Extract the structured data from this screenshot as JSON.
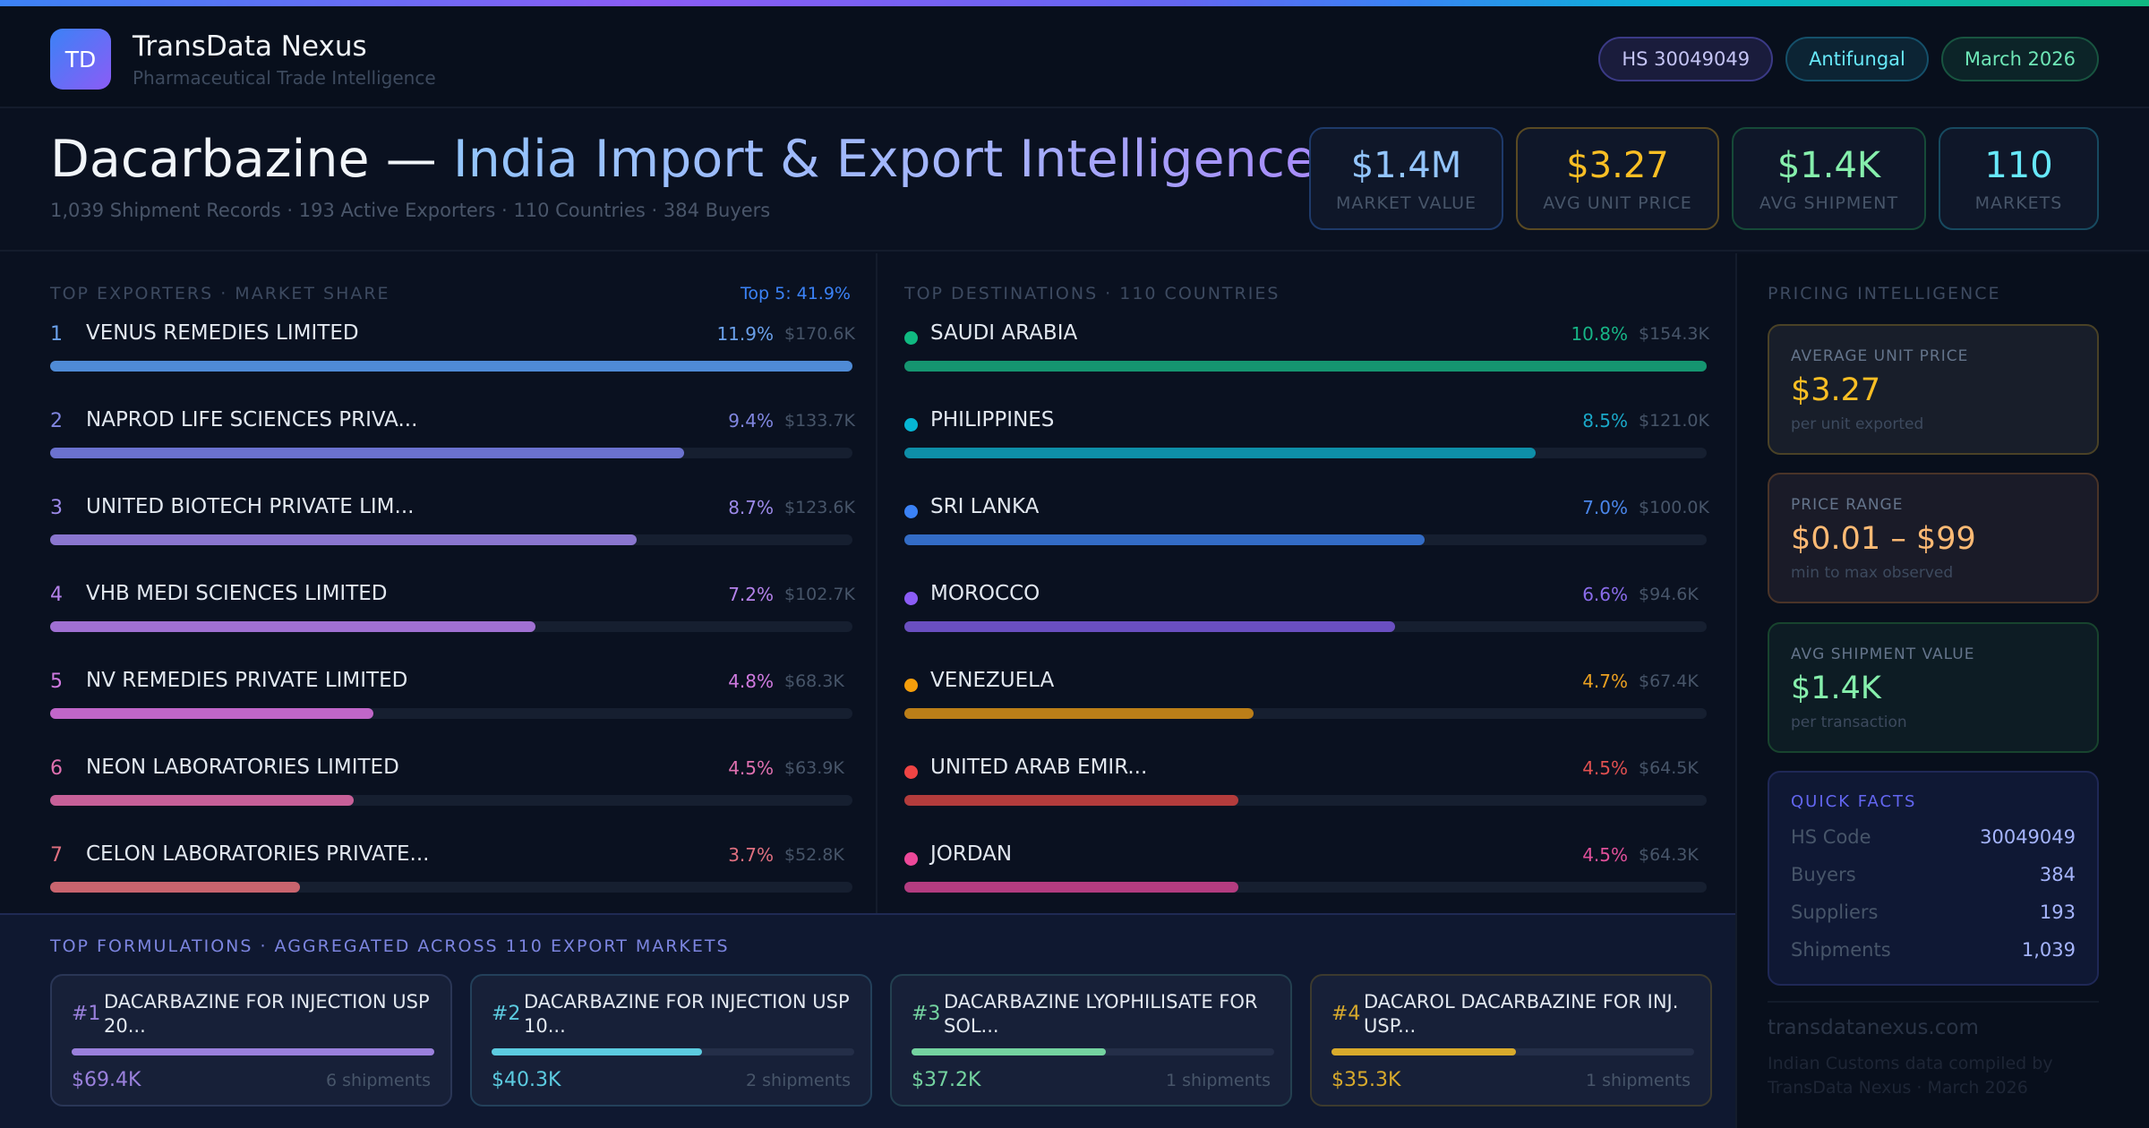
{
  "brand": {
    "logo_text": "TD",
    "name": "TransData Nexus",
    "tagline": "Pharmaceutical Trade Intelligence"
  },
  "pills": [
    "HS 30049049",
    "Antifungal",
    "March 2026"
  ],
  "hero": {
    "title_product": "Dacarbazine —",
    "title_rest": "India Import & Export Intelligence",
    "subtitle": "1,039 Shipment Records · 193 Active Exporters · 110 Countries · 384 Buyers"
  },
  "kpis": [
    {
      "value": "$1.4M",
      "label": "MARKET VALUE",
      "color": "#93c5fd"
    },
    {
      "value": "$3.27",
      "label": "AVG UNIT PRICE",
      "color": "#fbbf24"
    },
    {
      "value": "$1.4K",
      "label": "AVG SHIPMENT",
      "color": "#86efac"
    },
    {
      "value": "110",
      "label": "MARKETS",
      "color": "#67e8f9"
    }
  ],
  "exporters": {
    "label": "TOP EXPORTERS · MARKET SHARE",
    "summary": "Top 5: 41.9%",
    "items": [
      {
        "rank": "1",
        "name": "VENUS REMEDIES LIMITED",
        "pct": "11.9%",
        "value": "$170.6K",
        "share": 11.9,
        "color": "#4f8bd6",
        "text_color": "#6aa0ea"
      },
      {
        "rank": "2",
        "name": "NAPROD LIFE SCIENCES PRIVA...",
        "pct": "9.4%",
        "value": "$133.7K",
        "share": 9.4,
        "color": "#6b72cf",
        "text_color": "#8086e0"
      },
      {
        "rank": "3",
        "name": "UNITED BIOTECH PRIVATE LIM...",
        "pct": "8.7%",
        "value": "$123.6K",
        "share": 8.7,
        "color": "#8a76cf",
        "text_color": "#9d8aea"
      },
      {
        "rank": "4",
        "name": "VHB MEDI SCIENCES LIMITED",
        "pct": "7.2%",
        "value": "$102.7K",
        "share": 7.2,
        "color": "#a070d2",
        "text_color": "#b482ea"
      },
      {
        "rank": "5",
        "name": "NV REMEDIES PRIVATE LIMITED",
        "pct": "4.8%",
        "value": "$68.3K",
        "share": 4.8,
        "color": "#c066c8",
        "text_color": "#d07ae0"
      },
      {
        "rank": "6",
        "name": "NEON LABORATORIES LIMITED",
        "pct": "4.5%",
        "value": "$63.9K",
        "share": 4.5,
        "color": "#c76098",
        "text_color": "#e070b0"
      },
      {
        "rank": "7",
        "name": "CELON LABORATORIES PRIVATE...",
        "pct": "3.7%",
        "value": "$52.8K",
        "share": 3.7,
        "color": "#c9646e",
        "text_color": "#e07080"
      }
    ]
  },
  "destinations": {
    "label": "TOP DESTINATIONS · 110 COUNTRIES",
    "items": [
      {
        "name": "SAUDI ARABIA",
        "pct": "10.8%",
        "value": "$154.3K",
        "share": 10.8,
        "color": "#159570",
        "dot": "#10b981",
        "text_color": "#17b586"
      },
      {
        "name": "PHILIPPINES",
        "pct": "8.5%",
        "value": "$121.0K",
        "share": 8.5,
        "color": "#0e8ea8",
        "dot": "#06b6d4",
        "text_color": "#1aa8c8"
      },
      {
        "name": "SRI LANKA",
        "pct": "7.0%",
        "value": "$100.0K",
        "share": 7.0,
        "color": "#336cc6",
        "dot": "#3b82f6",
        "text_color": "#4a86ea"
      },
      {
        "name": "MOROCCO",
        "pct": "6.6%",
        "value": "$94.6K",
        "share": 6.6,
        "color": "#6a4fc0",
        "dot": "#8b5cf6",
        "text_color": "#8a6cea"
      },
      {
        "name": "VENEZUELA",
        "pct": "4.7%",
        "value": "$67.4K",
        "share": 4.7,
        "color": "#bb7e18",
        "dot": "#f59e0b",
        "text_color": "#eaa020"
      },
      {
        "name": "UNITED ARAB EMIR...",
        "pct": "4.5%",
        "value": "$64.5K",
        "share": 4.5,
        "color": "#b43c3c",
        "dot": "#ef4444",
        "text_color": "#e05050"
      },
      {
        "name": "JORDAN",
        "pct": "4.5%",
        "value": "$64.3K",
        "share": 4.5,
        "color": "#b33c80",
        "dot": "#ec4899",
        "text_color": "#e0509a"
      }
    ]
  },
  "formulations": {
    "label": "TOP FORMULATIONS · AGGREGATED ACROSS 110 EXPORT MARKETS",
    "items": [
      {
        "rank": "#1",
        "name": "DACARBAZINE FOR INJECTION USP 20...",
        "value": "$69.4K",
        "shipments": "6 shipments",
        "amount_k": 69.4,
        "color": "#9a80dc",
        "border": "#2a3656"
      },
      {
        "rank": "#2",
        "name": "DACARBAZINE FOR INJECTION USP 10...",
        "value": "$40.3K",
        "shipments": "2 shipments",
        "amount_k": 40.3,
        "color": "#5ccbe0",
        "border": "#23405a"
      },
      {
        "rank": "#3",
        "name": "DACARBAZINE LYOPHILISATE FOR SOL...",
        "value": "$37.2K",
        "shipments": "1 shipments",
        "amount_k": 37.2,
        "color": "#74d3a0",
        "border": "#234050"
      },
      {
        "rank": "#4",
        "name": "DACAROL DACARBAZINE FOR INJ. USP...",
        "value": "$35.3K",
        "shipments": "1 shipments",
        "amount_k": 35.3,
        "color": "#d8aa2c",
        "border": "#3c3a2e"
      }
    ]
  },
  "pricing": {
    "label": "PRICING INTELLIGENCE",
    "cards": [
      {
        "label": "AVERAGE UNIT PRICE",
        "value": "$3.27",
        "sub": "per unit exported"
      },
      {
        "label": "PRICE RANGE",
        "value": "$0.01 – $99",
        "sub": "min to max observed"
      },
      {
        "label": "AVG SHIPMENT VALUE",
        "value": "$1.4K",
        "sub": "per transaction"
      }
    ],
    "quick_facts": {
      "label": "QUICK FACTS",
      "rows": [
        {
          "key": "HS Code",
          "value": "30049049"
        },
        {
          "key": "Buyers",
          "value": "384"
        },
        {
          "key": "Suppliers",
          "value": "193"
        },
        {
          "key": "Shipments",
          "value": "1,039"
        }
      ]
    }
  },
  "footer": {
    "site": "transdatanexus.com",
    "credit": "Indian Customs data compiled by TransData Nexus · March 2026"
  }
}
